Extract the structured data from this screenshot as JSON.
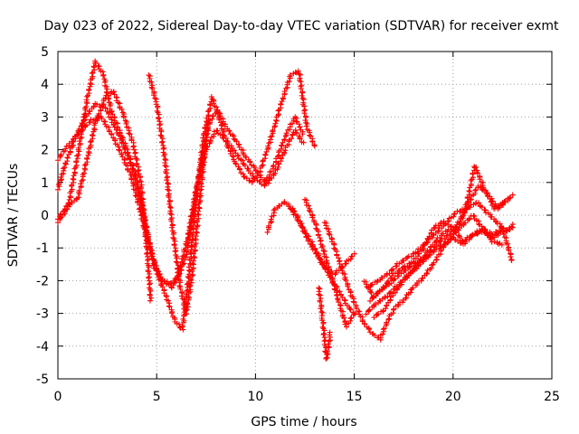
{
  "chart_data": {
    "type": "scatter",
    "title": "Day 023 of 2022, Sidereal Day-to-day VTEC variation (SDTVAR) for receiver exmt",
    "xlabel": "GPS time / hours",
    "ylabel": "SDTVAR / TECUs",
    "xlim": [
      0,
      25
    ],
    "ylim": [
      -5,
      5
    ],
    "xticks": [
      0,
      5,
      10,
      15,
      20,
      25
    ],
    "yticks": [
      -5,
      -4,
      -3,
      -2,
      -1,
      0,
      1,
      2,
      3,
      4,
      5
    ],
    "grid": true,
    "marker": "+",
    "color": "#ff0000",
    "series": [
      {
        "name": "s1",
        "x": [
          0.0,
          0.5,
          1.0,
          1.5,
          1.9,
          2.3,
          2.7,
          3.1,
          3.5,
          3.9,
          4.2,
          4.5,
          4.8,
          5.1,
          5.5,
          5.9,
          6.3,
          6.6,
          7.0,
          7.4,
          7.8,
          8.2,
          8.6,
          9.0,
          9.4,
          9.8,
          10.2,
          10.6,
          11.0,
          11.4,
          11.8,
          12.2,
          12.6,
          13.0
        ],
        "y": [
          -0.2,
          0.2,
          1.8,
          3.6,
          4.7,
          4.3,
          3.2,
          2.6,
          2.0,
          1.3,
          0.4,
          -0.5,
          -1.3,
          -1.9,
          -2.5,
          -3.2,
          -3.5,
          -2.0,
          0.5,
          2.5,
          3.6,
          2.9,
          2.1,
          1.6,
          1.2,
          1.0,
          1.3,
          2.0,
          2.8,
          3.6,
          4.3,
          4.4,
          2.7,
          2.1
        ]
      },
      {
        "name": "s2",
        "x": [
          0.0,
          0.4,
          0.9,
          1.4,
          1.9,
          2.4,
          2.8,
          3.2,
          3.6,
          4.0,
          4.3,
          4.6,
          4.9,
          5.3,
          5.7,
          6.1,
          6.5,
          6.9,
          7.3,
          7.7,
          8.1,
          8.5,
          9.0,
          9.5,
          10.0,
          10.5,
          11.0,
          11.5,
          12.0,
          12.4
        ],
        "y": [
          0.8,
          1.6,
          2.4,
          3.0,
          3.4,
          3.3,
          2.8,
          2.3,
          1.7,
          1.0,
          0.2,
          -0.8,
          -1.6,
          -2.0,
          -2.1,
          -1.9,
          -1.2,
          0.3,
          1.8,
          2.9,
          3.2,
          2.7,
          2.3,
          1.8,
          1.4,
          1.0,
          1.6,
          2.4,
          3.0,
          2.5
        ]
      },
      {
        "name": "s3",
        "x": [
          0.0,
          0.6,
          1.2,
          1.7,
          2.2,
          2.7,
          3.2,
          3.7,
          4.1,
          4.5,
          4.9,
          5.3,
          5.8,
          6.2,
          6.6,
          7.0,
          7.5,
          8.0,
          8.5,
          9.0,
          9.5,
          10.0,
          10.5,
          11.0,
          11.5,
          12.0,
          12.4
        ],
        "y": [
          1.7,
          2.2,
          2.6,
          2.9,
          3.0,
          2.5,
          1.9,
          1.2,
          0.3,
          -0.7,
          -1.5,
          -2.0,
          -2.2,
          -1.6,
          -0.6,
          0.8,
          2.0,
          2.6,
          2.3,
          1.9,
          1.5,
          1.1,
          0.9,
          1.3,
          2.0,
          2.6,
          2.2
        ]
      },
      {
        "name": "s4",
        "x": [
          0.0,
          0.5,
          1.0,
          1.4,
          1.9,
          2.4,
          2.8,
          3.3,
          3.8,
          4.2,
          4.5,
          4.7
        ],
        "y": [
          -0.1,
          0.3,
          0.5,
          1.5,
          2.8,
          3.6,
          3.8,
          3.1,
          2.2,
          1.0,
          -1.0,
          -2.6
        ]
      },
      {
        "name": "s5",
        "x": [
          4.6,
          5.0,
          5.4,
          5.8,
          6.2,
          6.5,
          6.8,
          7.2,
          7.6
        ],
        "y": [
          4.3,
          3.4,
          1.8,
          -0.4,
          -2.2,
          -3.0,
          -1.8,
          0.6,
          2.9
        ]
      },
      {
        "name": "s6",
        "x": [
          11.8,
          12.3,
          12.7,
          13.1,
          13.5,
          13.9,
          14.3,
          14.7,
          15.0
        ],
        "y": [
          0.2,
          -0.3,
          -0.8,
          -1.2,
          -1.6,
          -2.0,
          -2.4,
          -2.8,
          -3.0
        ]
      },
      {
        "name": "s7",
        "x": [
          10.6,
          11.0,
          11.5,
          12.0,
          12.5,
          13.0,
          13.5,
          14.0,
          14.5,
          15.0
        ],
        "y": [
          -0.5,
          0.2,
          0.4,
          0.1,
          -0.5,
          -1.0,
          -1.6,
          -1.8,
          -1.5,
          -1.2
        ]
      },
      {
        "name": "s8",
        "x": [
          12.5,
          13.0,
          13.4,
          13.8,
          14.2,
          14.6,
          15.0
        ],
        "y": [
          0.5,
          -0.2,
          -1.0,
          -1.8,
          -2.6,
          -3.4,
          -3.0
        ]
      },
      {
        "name": "s9",
        "x": [
          13.2,
          13.4,
          13.6,
          13.8
        ],
        "y": [
          -2.2,
          -3.2,
          -4.4,
          -3.6
        ]
      },
      {
        "name": "s10",
        "x": [
          13.5,
          13.9,
          14.3,
          14.7,
          15.1,
          15.5,
          15.9,
          16.3,
          16.7,
          17.1,
          17.5,
          18.0,
          18.5,
          19.0,
          19.5,
          20.0,
          20.5,
          21.0,
          21.5,
          22.0,
          22.5,
          23.0
        ],
        "y": [
          -0.2,
          -0.8,
          -1.5,
          -2.2,
          -2.8,
          -3.3,
          -3.6,
          -3.8,
          -3.2,
          -2.8,
          -2.6,
          -2.2,
          -1.9,
          -1.5,
          -1.0,
          -0.6,
          -0.3,
          0.0,
          -0.4,
          -0.6,
          -0.4,
          -1.4
        ]
      },
      {
        "name": "s11",
        "x": [
          15.5,
          16.0,
          16.5,
          17.0,
          17.5,
          18.0,
          18.5,
          19.0,
          19.5,
          20.0,
          20.5,
          21.0,
          21.5,
          22.0,
          22.5,
          23.0
        ],
        "y": [
          -2.0,
          -2.5,
          -2.2,
          -1.8,
          -1.6,
          -1.4,
          -1.0,
          -0.4,
          -0.2,
          -0.4,
          -0.8,
          -0.6,
          -0.5,
          -0.7,
          -0.5,
          -0.4
        ]
      },
      {
        "name": "s12",
        "x": [
          15.6,
          16.1,
          16.6,
          17.1,
          17.6,
          18.1,
          18.6,
          19.1,
          19.6,
          20.1,
          20.6,
          21.1,
          21.6,
          22.1,
          22.6,
          23.0
        ],
        "y": [
          -3.0,
          -2.7,
          -2.5,
          -2.2,
          -1.9,
          -1.6,
          -1.2,
          -0.8,
          -0.5,
          -0.4,
          0.1,
          1.5,
          0.8,
          0.2,
          0.4,
          0.6
        ]
      },
      {
        "name": "s13",
        "x": [
          15.7,
          16.2,
          16.7,
          17.2,
          17.7,
          18.2,
          18.7,
          19.2,
          19.7,
          20.2,
          20.7,
          21.2,
          21.7,
          22.2,
          22.7,
          23.0
        ],
        "y": [
          -2.2,
          -2.0,
          -1.8,
          -1.5,
          -1.3,
          -1.1,
          -0.8,
          -0.5,
          -0.2,
          0.1,
          0.2,
          0.4,
          0.1,
          -0.2,
          -0.5,
          -0.3
        ]
      },
      {
        "name": "s14",
        "x": [
          15.8,
          16.3,
          16.8,
          17.3,
          17.8,
          18.3,
          18.8,
          19.3,
          19.8,
          20.3,
          20.8,
          21.3,
          21.8,
          22.3,
          22.8
        ],
        "y": [
          -2.6,
          -2.3,
          -2.1,
          -1.8,
          -1.6,
          -1.4,
          -1.2,
          -0.8,
          -0.6,
          -0.3,
          0.4,
          0.9,
          0.6,
          0.2,
          0.5
        ]
      },
      {
        "name": "s15",
        "x": [
          16.0,
          16.5,
          17.0,
          17.5,
          18.0,
          18.5,
          19.0,
          19.5,
          20.0,
          20.5,
          21.0,
          21.5,
          22.0,
          22.5
        ],
        "y": [
          -3.1,
          -2.9,
          -2.4,
          -2.0,
          -1.7,
          -1.4,
          -1.1,
          -0.9,
          -0.7,
          -0.9,
          -0.6,
          -0.4,
          -0.8,
          -0.9
        ]
      }
    ]
  }
}
